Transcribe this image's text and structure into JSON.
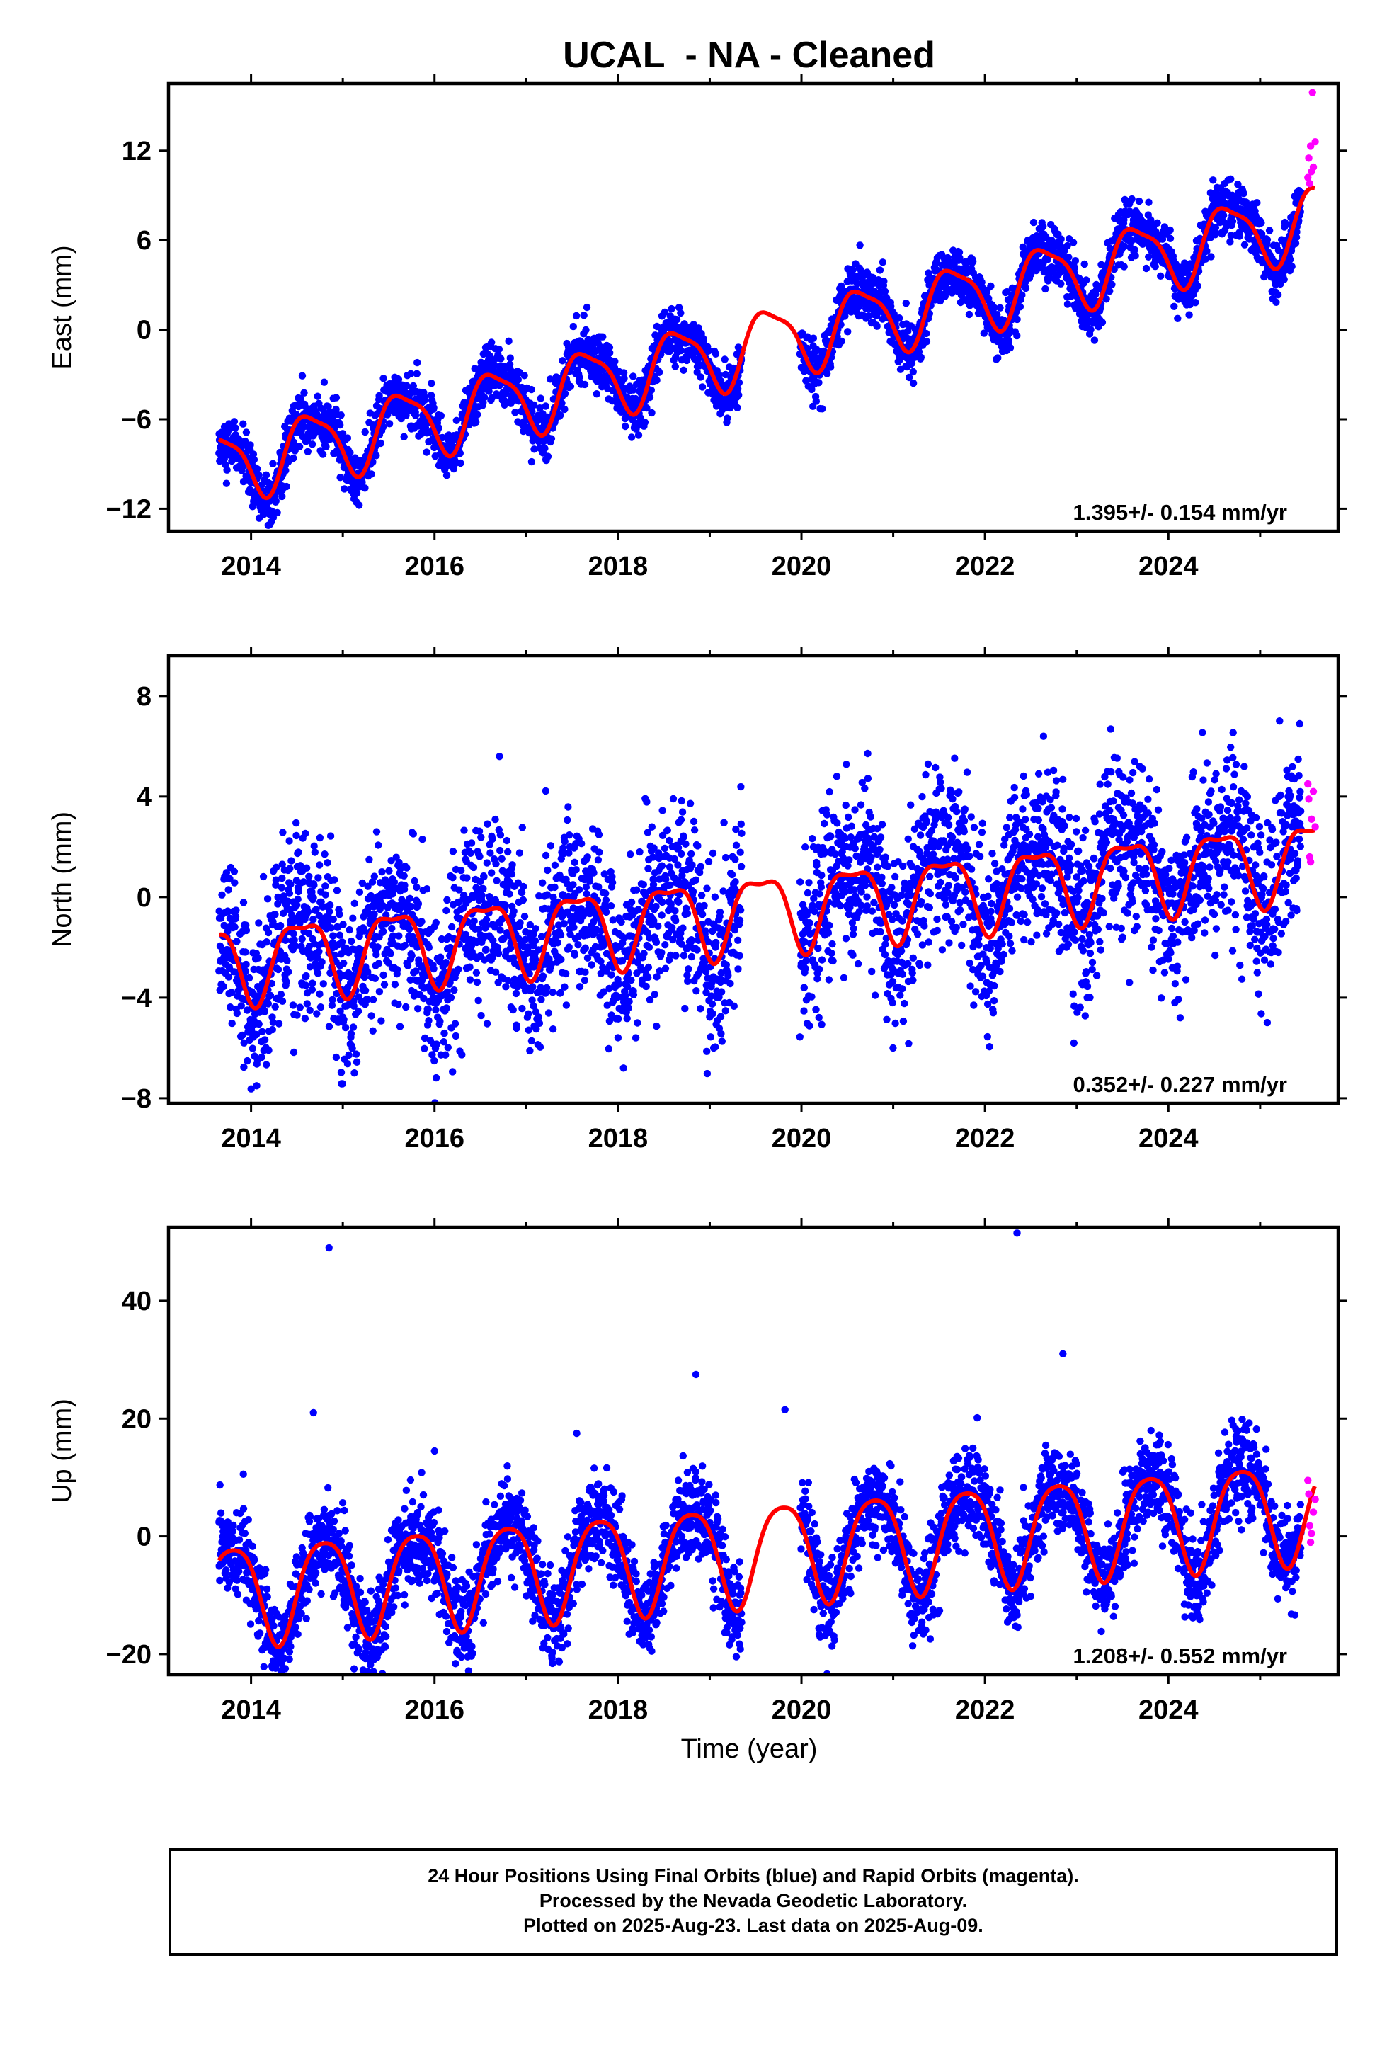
{
  "title": "UCAL  - NA - Cleaned",
  "xlabel": "Time (year)",
  "footer": {
    "line1": "24 Hour Positions Using Final Orbits (blue) and Rapid Orbits (magenta).",
    "line2": "Processed by the Nevada Geodetic Laboratory.",
    "line3": "Plotted on 2025-Aug-23. Last data on 2025-Aug-09."
  },
  "colors": {
    "final_orbits": "#0000ff",
    "rapid_orbits": "#ff00ff",
    "model_fit": "#ff0000",
    "axes": "#000000"
  },
  "chart_data": [
    {
      "type": "scatter",
      "ylabel": "East (mm)",
      "rate_annotation": "1.395+/- 0.154 mm/yr",
      "xlim": [
        2013.1,
        2025.85
      ],
      "ylim": [
        -13.5,
        16.5
      ],
      "yticks": [
        -12,
        -6,
        0,
        6,
        12
      ],
      "xticks": [
        2014,
        2016,
        2018,
        2020,
        2022,
        2024
      ],
      "model": {
        "start": 2013.65,
        "end": 2025.6,
        "ref_year": 2019.5,
        "offset": -1.0,
        "rate": 1.395,
        "annual_amp": 2.3,
        "annual_phase_year": 2019.65,
        "semi_amp": 0.6,
        "semi_phase_year": 2019.45
      },
      "scatter_noise_sd": 0.9,
      "data_gap": [
        2019.35,
        2019.98
      ],
      "series": [
        {
          "name": "Final Orbits (blue)",
          "x_start": 2013.65,
          "x_end": 2025.45
        },
        {
          "name": "Rapid Orbits (magenta)",
          "x": [
            2025.52,
            2025.53,
            2025.54,
            2025.55,
            2025.56,
            2025.57,
            2025.58,
            2025.6
          ],
          "y": [
            10.2,
            11.5,
            9.8,
            12.3,
            10.6,
            15.9,
            10.9,
            12.6
          ]
        }
      ]
    },
    {
      "type": "scatter",
      "ylabel": "North (mm)",
      "rate_annotation": "0.352+/- 0.227 mm/yr",
      "xlim": [
        2013.1,
        2025.85
      ],
      "ylim": [
        -8.2,
        9.6
      ],
      "yticks": [
        -8,
        -4,
        0,
        4,
        8
      ],
      "xticks": [
        2014,
        2016,
        2018,
        2020,
        2022,
        2024
      ],
      "model": {
        "start": 2013.65,
        "end": 2025.6,
        "ref_year": 2019.5,
        "offset": -0.5,
        "rate": 0.352,
        "annual_amp": 1.5,
        "annual_phase_year": 2019.55,
        "semi_amp": 0.5,
        "semi_phase_year": 2019.3
      },
      "scatter_noise_sd": 1.7,
      "data_gap": [
        2019.35,
        2019.98
      ],
      "series": [
        {
          "name": "Final Orbits (blue)",
          "x_start": 2013.65,
          "x_end": 2025.45
        },
        {
          "name": "Rapid Orbits (magenta)",
          "x": [
            2025.52,
            2025.53,
            2025.54,
            2025.55,
            2025.56,
            2025.58,
            2025.6
          ],
          "y": [
            4.5,
            3.9,
            1.6,
            1.4,
            3.1,
            4.2,
            2.8
          ]
        }
      ]
    },
    {
      "type": "scatter",
      "ylabel": "Up (mm)",
      "rate_annotation": "1.208+/- 0.552 mm/yr",
      "xlim": [
        2013.1,
        2025.85
      ],
      "ylim": [
        -23.5,
        52.5
      ],
      "yticks": [
        -20,
        0,
        20,
        40
      ],
      "xticks": [
        2014,
        2016,
        2018,
        2020,
        2022,
        2024
      ],
      "model": {
        "start": 2013.65,
        "end": 2025.6,
        "ref_year": 2019.5,
        "offset": -2.5,
        "rate": 1.208,
        "annual_amp": 8.5,
        "annual_phase_year": 2019.8,
        "semi_amp": 1.5,
        "semi_phase_year": 2019.55
      },
      "scatter_noise_sd": 3.8,
      "data_gap": [
        2019.35,
        2019.98
      ],
      "outliers": {
        "x": [
          2014.85,
          2022.35,
          2022.85,
          2018.85,
          2019.82,
          2014.68,
          2016.0,
          2017.55
        ],
        "y": [
          49,
          51.5,
          31,
          27.5,
          21.5,
          21,
          14.5,
          17.5
        ]
      },
      "series": [
        {
          "name": "Final Orbits (blue)",
          "x_start": 2013.65,
          "x_end": 2025.45
        },
        {
          "name": "Rapid Orbits (magenta)",
          "x": [
            2025.52,
            2025.53,
            2025.54,
            2025.55,
            2025.56,
            2025.58,
            2025.6
          ],
          "y": [
            9.5,
            7.2,
            1.8,
            -1.0,
            0.5,
            4.1,
            6.3
          ]
        }
      ]
    }
  ]
}
